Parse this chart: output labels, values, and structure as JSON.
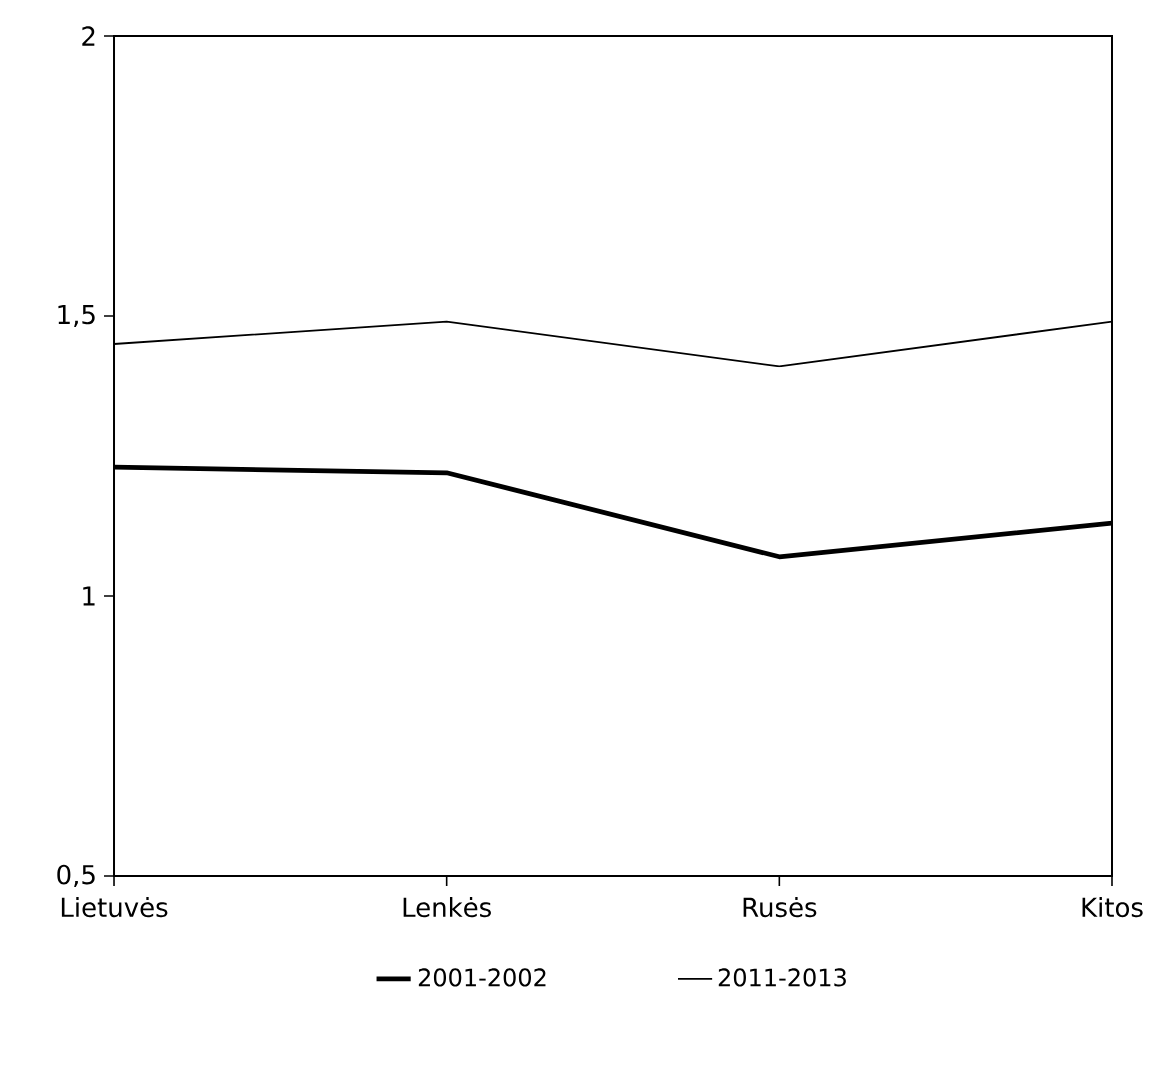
{
  "chart_data": {
    "type": "line",
    "categories": [
      "Lietuvės",
      "Lenkės",
      "Rusės",
      "Kitos"
    ],
    "series": [
      {
        "name": "2001-2002",
        "color": "#000000",
        "values": [
          1.23,
          1.22,
          1.07,
          1.13
        ]
      },
      {
        "name": "2011-2013",
        "color": "#000000",
        "values": [
          1.45,
          1.49,
          1.41,
          1.49
        ]
      }
    ],
    "ylim": [
      0.5,
      2
    ],
    "yticks": [
      {
        "value": 0.5,
        "label": "0,5"
      },
      {
        "value": 1,
        "label": "1"
      },
      {
        "value": 1.5,
        "label": "1,5"
      },
      {
        "value": 2,
        "label": "2"
      }
    ],
    "grid": false,
    "legend": "bottom",
    "marker": "none",
    "line_style": "solid"
  }
}
